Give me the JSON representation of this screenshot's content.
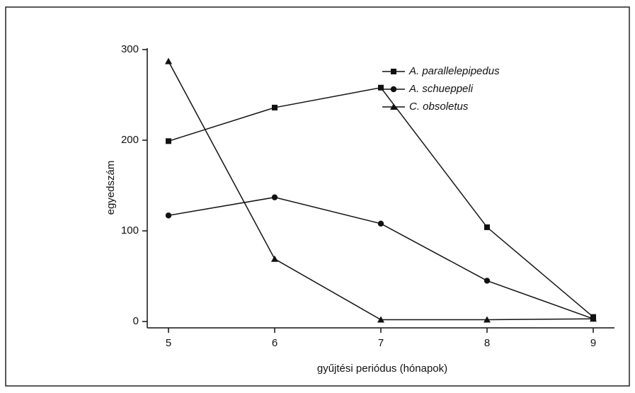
{
  "chart_data": {
    "type": "line",
    "x": [
      5,
      6,
      7,
      8,
      9
    ],
    "series": [
      {
        "name": "A. parallelepipedus",
        "color": "#111111",
        "marker": "square",
        "values": [
          199,
          236,
          258,
          104,
          5
        ]
      },
      {
        "name": "A. schueppeli",
        "color": "#111111",
        "marker": "circle",
        "values": [
          117,
          137,
          108,
          45,
          3
        ]
      },
      {
        "name": "C. obsoletus",
        "color": "#111111",
        "marker": "triangle",
        "values": [
          287,
          69,
          2,
          2,
          3
        ]
      }
    ],
    "xlabel": "gyűjtési periódus (hónapok)",
    "ylabel": "egyedszám",
    "xlim": [
      4.8,
      9.2
    ],
    "xticks": [
      5,
      6,
      7,
      8,
      9
    ],
    "ylim": [
      -7,
      300
    ],
    "yticks": [
      0,
      100,
      200,
      300
    ],
    "legend": "upper right"
  }
}
